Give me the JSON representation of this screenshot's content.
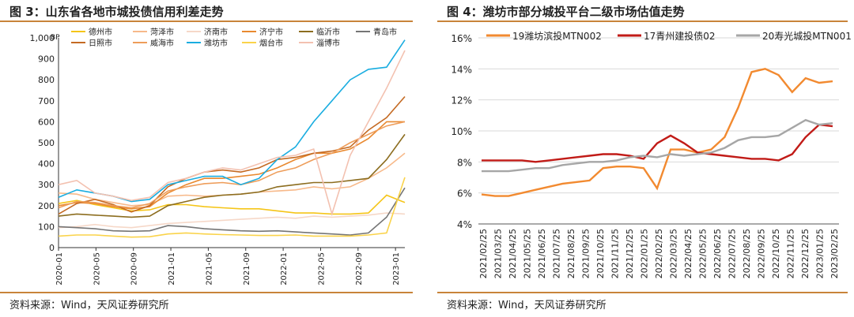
{
  "left": {
    "title": "图 3：山东省各地市城投债信用利差走势",
    "source": "资料来源：Wind，天风证券研究所"
  },
  "right": {
    "title": "图 4：潍坊市部分城投平台二级市场估值走势",
    "source": "资料来源：Wind，天风证券研究所"
  },
  "chart_data": [
    {
      "type": "line",
      "title": "图 3：山东省各地市城投债信用利差走势",
      "ylabel": "BP",
      "ylim": [
        0,
        1000
      ],
      "yticks": [
        "0",
        "100",
        "200",
        "300",
        "400",
        "500",
        "600",
        "700",
        "800",
        "900",
        "1,000"
      ],
      "xticks": [
        "2020-01",
        "2020-05",
        "2020-09",
        "2021-01",
        "2021-05",
        "2021-09",
        "2022-01",
        "2022-05",
        "2022-09",
        "2023-01"
      ],
      "x": [
        "2020-01",
        "2020-03",
        "2020-05",
        "2020-07",
        "2020-09",
        "2020-11",
        "2021-01",
        "2021-03",
        "2021-05",
        "2021-07",
        "2021-09",
        "2021-11",
        "2022-01",
        "2022-03",
        "2022-05",
        "2022-07",
        "2022-09",
        "2022-11",
        "2023-01",
        "2023-02"
      ],
      "legend_position": "top",
      "series": [
        {
          "name": "德州市",
          "color": "#f5c518",
          "values": [
            210,
            225,
            205,
            190,
            175,
            180,
            205,
            205,
            195,
            190,
            185,
            185,
            175,
            165,
            165,
            160,
            160,
            165,
            250,
            215
          ]
        },
        {
          "name": "菏泽市",
          "color": "#f7b98a",
          "values": [
            260,
            255,
            230,
            215,
            200,
            205,
            245,
            250,
            245,
            250,
            255,
            265,
            270,
            275,
            290,
            280,
            290,
            330,
            380,
            450
          ]
        },
        {
          "name": "济南市",
          "color": "#f6d8c8",
          "values": [
            95,
            100,
            110,
            100,
            95,
            105,
            115,
            120,
            125,
            130,
            135,
            140,
            145,
            140,
            150,
            145,
            150,
            155,
            165,
            160
          ]
        },
        {
          "name": "济宁市",
          "color": "#e9892f",
          "values": [
            200,
            215,
            210,
            195,
            185,
            195,
            260,
            300,
            330,
            330,
            340,
            350,
            380,
            420,
            450,
            450,
            470,
            520,
            600,
            600
          ]
        },
        {
          "name": "临沂市",
          "color": "#8c6d1f",
          "values": [
            150,
            160,
            155,
            150,
            145,
            150,
            200,
            220,
            240,
            250,
            255,
            265,
            290,
            300,
            310,
            310,
            320,
            330,
            420,
            540
          ]
        },
        {
          "name": "青岛市",
          "color": "#757575",
          "values": [
            100,
            95,
            90,
            80,
            78,
            80,
            105,
            100,
            90,
            85,
            80,
            78,
            80,
            75,
            70,
            65,
            60,
            70,
            145,
            285
          ]
        },
        {
          "name": "日照市",
          "color": "#c46a23",
          "values": [
            160,
            210,
            230,
            205,
            170,
            200,
            290,
            330,
            360,
            370,
            360,
            380,
            420,
            430,
            450,
            460,
            480,
            560,
            620,
            720
          ]
        },
        {
          "name": "威海市",
          "color": "#ee9d5a",
          "values": [
            190,
            220,
            215,
            200,
            190,
            210,
            270,
            290,
            305,
            310,
            300,
            320,
            360,
            380,
            420,
            450,
            500,
            540,
            580,
            600
          ]
        },
        {
          "name": "潍坊市",
          "color": "#1aade0",
          "values": [
            240,
            275,
            260,
            245,
            220,
            230,
            300,
            320,
            340,
            340,
            300,
            330,
            420,
            480,
            600,
            700,
            800,
            850,
            860,
            990
          ]
        },
        {
          "name": "烟台市",
          "color": "#fad34a",
          "values": [
            55,
            60,
            60,
            55,
            50,
            52,
            65,
            70,
            65,
            62,
            60,
            58,
            58,
            60,
            55,
            55,
            55,
            60,
            70,
            335
          ]
        },
        {
          "name": "淄博市",
          "color": "#f3c1b0",
          "values": [
            300,
            320,
            260,
            245,
            225,
            240,
            310,
            330,
            360,
            380,
            370,
            400,
            430,
            440,
            470,
            160,
            440,
            600,
            760,
            940
          ]
        }
      ]
    },
    {
      "type": "line",
      "title": "图 4：潍坊市部分城投平台二级市场估值走势",
      "ylim": [
        4,
        16
      ],
      "yticks": [
        "4%",
        "6%",
        "8%",
        "10%",
        "12%",
        "14%",
        "16%"
      ],
      "xticks": [
        "2021/02/25",
        "2021/03/25",
        "2021/04/25",
        "2021/05/25",
        "2021/06/25",
        "2021/07/25",
        "2021/08/25",
        "2021/09/25",
        "2021/10/25",
        "2021/11/25",
        "2021/12/25",
        "2022/01/25",
        "2022/02/25",
        "2022/03/25",
        "2022/04/25",
        "2022/05/25",
        "2022/06/25",
        "2022/07/25",
        "2022/08/25",
        "2022/09/25",
        "2022/10/25",
        "2022/11/25",
        "2022/12/25",
        "2023/01/25",
        "2023/02/25"
      ],
      "legend_position": "top",
      "series": [
        {
          "name": "19潍坊滨投MTN002",
          "color": "#f28a30",
          "values": [
            5.9,
            5.8,
            5.8,
            6.0,
            6.2,
            6.4,
            6.6,
            6.7,
            6.8,
            7.6,
            7.7,
            7.7,
            7.6,
            6.3,
            8.8,
            8.8,
            8.6,
            8.8,
            9.6,
            11.5,
            13.8,
            14.0,
            13.6,
            12.5,
            13.4,
            13.1,
            13.2
          ]
        },
        {
          "name": "17青州建投债02",
          "color": "#c11b17",
          "values": [
            8.1,
            8.1,
            8.1,
            8.1,
            8.0,
            8.1,
            8.2,
            8.3,
            8.4,
            8.5,
            8.5,
            8.4,
            8.2,
            9.2,
            9.7,
            9.2,
            8.6,
            8.5,
            8.4,
            8.3,
            8.2,
            8.2,
            8.1,
            8.5,
            9.6,
            10.4,
            10.3
          ]
        },
        {
          "name": "20寿光城投MTN001",
          "color": "#a6a6a6",
          "values": [
            7.4,
            7.4,
            7.4,
            7.5,
            7.6,
            7.6,
            7.8,
            7.9,
            8.0,
            8.0,
            8.1,
            8.3,
            8.4,
            8.3,
            8.5,
            8.4,
            8.5,
            8.6,
            8.9,
            9.4,
            9.6,
            9.6,
            9.7,
            10.2,
            10.7,
            10.4,
            10.5
          ]
        }
      ]
    }
  ]
}
